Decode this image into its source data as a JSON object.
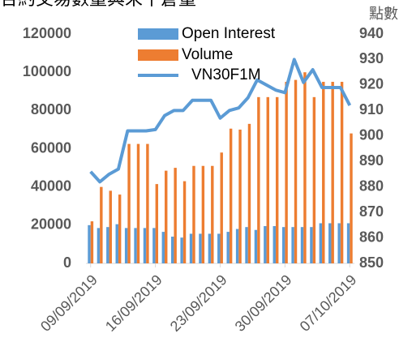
{
  "chart_data": {
    "type": "bar-line",
    "title": "合約交易數量與未平倉量",
    "y2label": "點數",
    "categories": [
      "09/09/2019",
      null,
      null,
      null,
      null,
      null,
      null,
      "16/09/2019",
      null,
      null,
      null,
      null,
      null,
      null,
      "23/09/2019",
      null,
      null,
      null,
      null,
      null,
      null,
      "30/09/2019",
      null,
      null,
      null,
      null,
      null,
      null,
      "07/10/2019"
    ],
    "series": [
      {
        "name": "Open Interest",
        "color": "#5b9bd5",
        "kind": "bar",
        "values": [
          20000,
          18500,
          19000,
          20500,
          18500,
          18500,
          18500,
          18500,
          16500,
          14000,
          13500,
          15500,
          15500,
          15500,
          15500,
          16500,
          18000,
          19000,
          17500,
          19500,
          19500,
          19000,
          19000,
          19000,
          19000,
          21000,
          21000,
          21000,
          21000
        ]
      },
      {
        "name": "Volume",
        "color": "#ed7d31",
        "kind": "bar",
        "values": [
          22000,
          40000,
          38000,
          36000,
          62500,
          62500,
          62500,
          41500,
          48500,
          50000,
          43000,
          51000,
          51000,
          51000,
          58000,
          70500,
          70000,
          73000,
          87000,
          87000,
          87000,
          95000,
          96000,
          100000,
          87000,
          95000,
          95000,
          95000,
          68000
        ]
      },
      {
        "name": "VN30F1M",
        "color": "#5b9bd5",
        "kind": "line",
        "axis": "y2",
        "values": [
          886,
          882,
          885,
          887,
          902,
          902,
          902,
          902.5,
          908,
          910,
          910,
          914,
          914,
          914,
          907,
          910,
          911,
          915,
          922,
          920,
          918,
          917,
          930,
          921,
          926,
          919,
          919,
          919,
          912
        ]
      }
    ],
    "ylim": [
      0,
      120000
    ],
    "yticks": [
      0,
      20000,
      40000,
      60000,
      80000,
      100000,
      120000
    ],
    "y2lim": [
      850,
      940
    ],
    "y2ticks": [
      850,
      860,
      870,
      880,
      890,
      900,
      910,
      920,
      930,
      940
    ]
  }
}
